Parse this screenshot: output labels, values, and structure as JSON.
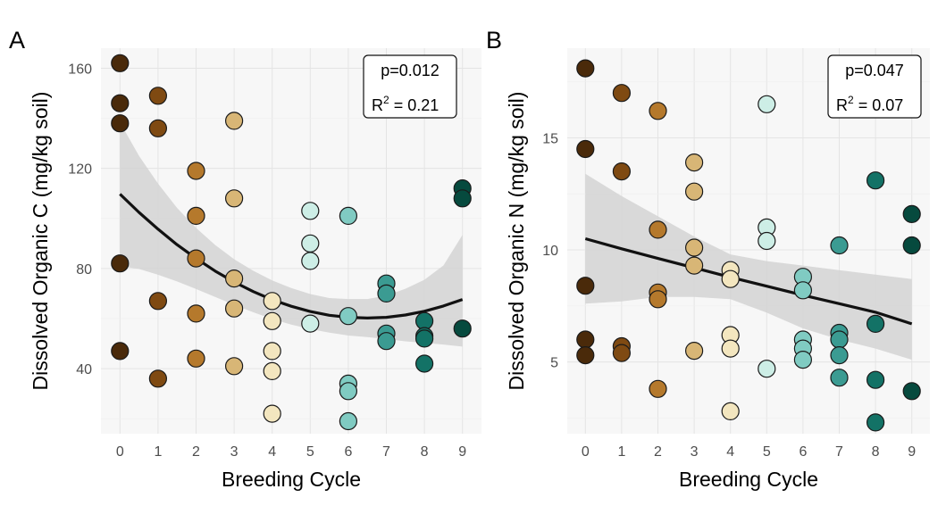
{
  "colors": {
    "panel_bg": "#f7f7f7",
    "grid": "#e4e4e4",
    "ci_band": "#d4d4d4",
    "fit_line": "#111111",
    "point_stroke": "#1a1a1a",
    "cycle_palette": [
      "#4a2a0a",
      "#7f4a12",
      "#b5792c",
      "#d8b676",
      "#f3e6bf",
      "#cdeee6",
      "#80cbc2",
      "#3b9b92",
      "#137266",
      "#064a3e"
    ]
  },
  "chart_data": [
    {
      "panel_tag": "A",
      "type": "scatter",
      "xlabel": "Breeding Cycle",
      "ylabel": "Dissolved Organic C (mg/kg soil)",
      "xlim": [
        -0.5,
        9.5
      ],
      "ylim": [
        14,
        168
      ],
      "x_ticks": [
        0,
        1,
        2,
        3,
        4,
        5,
        6,
        7,
        8,
        9
      ],
      "y_ticks": [
        40,
        80,
        120,
        160
      ],
      "stats": {
        "p_text": "p=0.012",
        "r2_label": "R",
        "r2_sup": "2",
        "r2_value": " = 0.21"
      },
      "points": [
        {
          "x": 0,
          "y": 162
        },
        {
          "x": 0,
          "y": 146
        },
        {
          "x": 0,
          "y": 138
        },
        {
          "x": 0,
          "y": 82
        },
        {
          "x": 0,
          "y": 47
        },
        {
          "x": 1,
          "y": 149
        },
        {
          "x": 1,
          "y": 136
        },
        {
          "x": 1,
          "y": 67
        },
        {
          "x": 1,
          "y": 36
        },
        {
          "x": 2,
          "y": 119
        },
        {
          "x": 2,
          "y": 101
        },
        {
          "x": 2,
          "y": 84
        },
        {
          "x": 2,
          "y": 62
        },
        {
          "x": 2,
          "y": 44
        },
        {
          "x": 3,
          "y": 139
        },
        {
          "x": 3,
          "y": 108
        },
        {
          "x": 3,
          "y": 76
        },
        {
          "x": 3,
          "y": 64
        },
        {
          "x": 3,
          "y": 41
        },
        {
          "x": 4,
          "y": 67
        },
        {
          "x": 4,
          "y": 59
        },
        {
          "x": 4,
          "y": 47
        },
        {
          "x": 4,
          "y": 39
        },
        {
          "x": 4,
          "y": 22
        },
        {
          "x": 5,
          "y": 103
        },
        {
          "x": 5,
          "y": 90
        },
        {
          "x": 5,
          "y": 83
        },
        {
          "x": 5,
          "y": 58
        },
        {
          "x": 6,
          "y": 101
        },
        {
          "x": 6,
          "y": 61
        },
        {
          "x": 6,
          "y": 34
        },
        {
          "x": 6,
          "y": 31
        },
        {
          "x": 6,
          "y": 19
        },
        {
          "x": 7,
          "y": 74
        },
        {
          "x": 7,
          "y": 70
        },
        {
          "x": 7,
          "y": 54
        },
        {
          "x": 7,
          "y": 51
        },
        {
          "x": 8,
          "y": 59
        },
        {
          "x": 8,
          "y": 53
        },
        {
          "x": 8,
          "y": 52
        },
        {
          "x": 8,
          "y": 42
        },
        {
          "x": 9,
          "y": 112
        },
        {
          "x": 9,
          "y": 108
        },
        {
          "x": 9,
          "y": 56
        }
      ],
      "fit": {
        "x": [
          0,
          0.5,
          1,
          1.5,
          2,
          2.5,
          3,
          3.5,
          4,
          4.5,
          5,
          5.5,
          6,
          6.5,
          7,
          7.5,
          8,
          8.5,
          9
        ],
        "y": [
          109.7,
          102.4,
          95.7,
          89.5,
          84.0,
          79.0,
          74.6,
          70.8,
          67.5,
          64.9,
          62.8,
          61.3,
          60.5,
          60.2,
          60.5,
          61.4,
          62.9,
          65.0,
          67.6
        ],
        "ci_lower": [
          81.0,
          79.8,
          77.5,
          74.8,
          71.8,
          68.6,
          65.5,
          62.5,
          59.8,
          57.6,
          55.8,
          54.4,
          53.2,
          52.6,
          51.8,
          50.9,
          50.3,
          49.6,
          48.8
        ],
        "ci_upper": [
          138.4,
          125.0,
          113.9,
          104.2,
          96.2,
          89.4,
          83.7,
          79.1,
          75.2,
          72.2,
          69.8,
          68.2,
          67.8,
          67.8,
          69.2,
          71.9,
          75.5,
          81.2,
          93.4
        ]
      }
    },
    {
      "panel_tag": "B",
      "type": "scatter",
      "xlabel": "Breeding Cycle",
      "ylabel": "Dissolved Organic N (mg/kg soil)",
      "xlim": [
        -0.5,
        9.5
      ],
      "ylim": [
        1.8,
        19.0
      ],
      "x_ticks": [
        0,
        1,
        2,
        3,
        4,
        5,
        6,
        7,
        8,
        9
      ],
      "y_ticks": [
        5,
        10,
        15
      ],
      "stats": {
        "p_text": "p=0.047",
        "r2_label": "R",
        "r2_sup": "2",
        "r2_value": " = 0.07"
      },
      "points": [
        {
          "x": 0,
          "y": 18.1
        },
        {
          "x": 0,
          "y": 14.5
        },
        {
          "x": 0,
          "y": 8.4
        },
        {
          "x": 0,
          "y": 6.0
        },
        {
          "x": 0,
          "y": 5.3
        },
        {
          "x": 1,
          "y": 17.0
        },
        {
          "x": 1,
          "y": 13.5
        },
        {
          "x": 1,
          "y": 5.7
        },
        {
          "x": 1,
          "y": 5.4
        },
        {
          "x": 2,
          "y": 16.2
        },
        {
          "x": 2,
          "y": 10.9
        },
        {
          "x": 2,
          "y": 8.1
        },
        {
          "x": 2,
          "y": 7.8
        },
        {
          "x": 2,
          "y": 3.8
        },
        {
          "x": 3,
          "y": 13.9
        },
        {
          "x": 3,
          "y": 12.6
        },
        {
          "x": 3,
          "y": 10.1
        },
        {
          "x": 3,
          "y": 9.3
        },
        {
          "x": 3,
          "y": 5.5
        },
        {
          "x": 4,
          "y": 9.1
        },
        {
          "x": 4,
          "y": 8.7
        },
        {
          "x": 4,
          "y": 6.2
        },
        {
          "x": 4,
          "y": 5.6
        },
        {
          "x": 4,
          "y": 2.8
        },
        {
          "x": 5,
          "y": 16.5
        },
        {
          "x": 5,
          "y": 11.0
        },
        {
          "x": 5,
          "y": 10.4
        },
        {
          "x": 5,
          "y": 4.7
        },
        {
          "x": 6,
          "y": 8.8
        },
        {
          "x": 6,
          "y": 8.2
        },
        {
          "x": 6,
          "y": 6.0
        },
        {
          "x": 6,
          "y": 5.6
        },
        {
          "x": 6,
          "y": 5.1
        },
        {
          "x": 7,
          "y": 10.2
        },
        {
          "x": 7,
          "y": 6.3
        },
        {
          "x": 7,
          "y": 6.0
        },
        {
          "x": 7,
          "y": 5.3
        },
        {
          "x": 7,
          "y": 4.3
        },
        {
          "x": 8,
          "y": 13.1
        },
        {
          "x": 8,
          "y": 6.7
        },
        {
          "x": 8,
          "y": 4.2
        },
        {
          "x": 8,
          "y": 2.3
        },
        {
          "x": 9,
          "y": 11.6
        },
        {
          "x": 9,
          "y": 10.2
        },
        {
          "x": 9,
          "y": 3.7
        }
      ],
      "fit": {
        "x": [
          0,
          1,
          2,
          3,
          4,
          5,
          6,
          7,
          8,
          9
        ],
        "y": [
          10.5,
          10.05,
          9.62,
          9.2,
          8.78,
          8.38,
          7.98,
          7.6,
          7.22,
          6.7
        ],
        "ci_lower": [
          7.6,
          7.7,
          7.9,
          7.9,
          7.8,
          7.2,
          6.5,
          6.0,
          5.6,
          5.1
        ],
        "ci_upper": [
          13.4,
          12.4,
          11.5,
          10.6,
          9.8,
          9.5,
          9.3,
          9.1,
          8.9,
          8.7
        ]
      }
    }
  ]
}
